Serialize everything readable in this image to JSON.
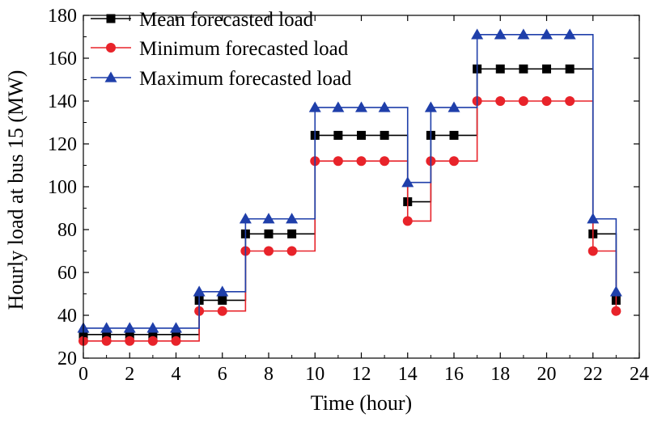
{
  "chart_data": {
    "type": "line",
    "xlabel": "Time (hour)",
    "ylabel": "Hourly load at bus 15 (MW)",
    "xlim": [
      0,
      24
    ],
    "ylim": [
      20,
      180
    ],
    "xticks": [
      0,
      2,
      4,
      6,
      8,
      10,
      12,
      14,
      16,
      18,
      20,
      22,
      24
    ],
    "yticks": [
      20,
      40,
      60,
      80,
      100,
      120,
      140,
      160,
      180
    ],
    "grid": false,
    "legend_position": "top-left",
    "x": [
      0,
      1,
      2,
      3,
      4,
      5,
      6,
      7,
      8,
      9,
      10,
      11,
      12,
      13,
      14,
      15,
      16,
      17,
      18,
      19,
      20,
      21,
      22,
      23
    ],
    "series": [
      {
        "name": "Mean forecasted load",
        "color": "#000000",
        "marker": "square",
        "values": [
          31,
          31,
          31,
          31,
          31,
          47,
          47,
          78,
          78,
          78,
          124,
          124,
          124,
          124,
          93,
          124,
          124,
          155,
          155,
          155,
          155,
          155,
          78,
          47
        ]
      },
      {
        "name": "Minimum forecasted load",
        "color": "#e8232a",
        "marker": "circle",
        "values": [
          28,
          28,
          28,
          28,
          28,
          42,
          42,
          70,
          70,
          70,
          112,
          112,
          112,
          112,
          84,
          112,
          112,
          140,
          140,
          140,
          140,
          140,
          70,
          42
        ]
      },
      {
        "name": "Maximum forecasted load",
        "color": "#1f3faa",
        "marker": "triangle",
        "values": [
          34,
          34,
          34,
          34,
          34,
          51,
          51,
          85,
          85,
          85,
          137,
          137,
          137,
          137,
          102,
          137,
          137,
          171,
          171,
          171,
          171,
          171,
          85,
          51
        ]
      }
    ]
  }
}
